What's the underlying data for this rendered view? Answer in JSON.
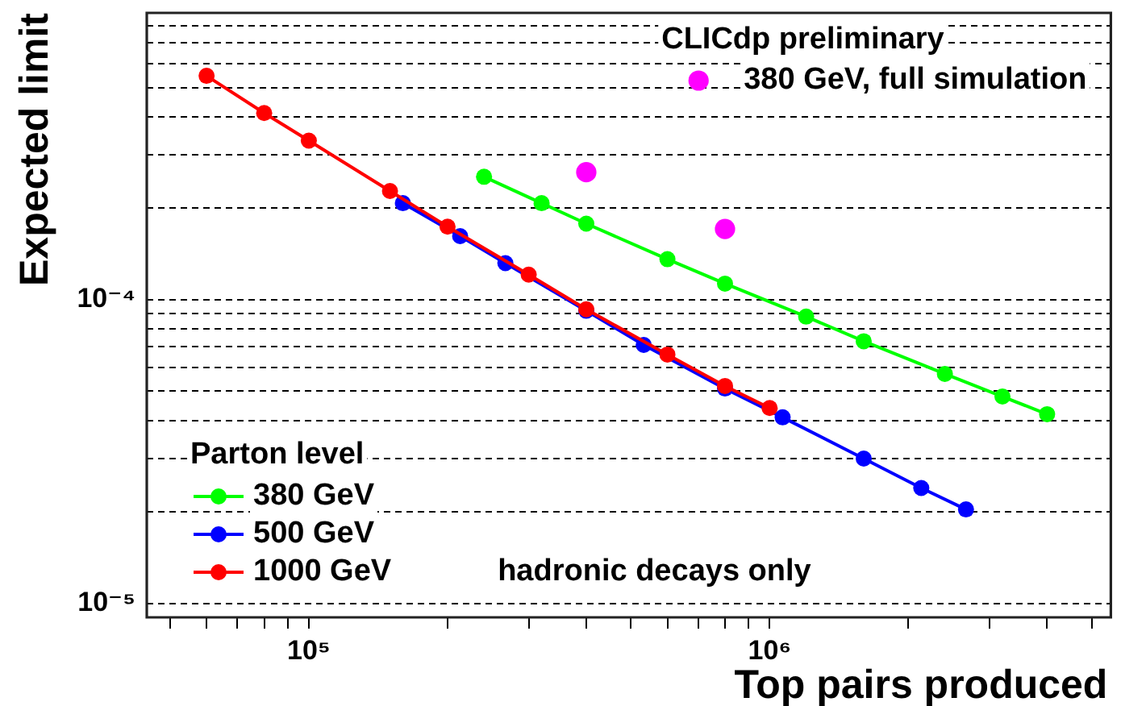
{
  "chart_data": {
    "type": "line",
    "xlabel": "Top pairs produced",
    "ylabel": "Expected limit",
    "legend_title": "Parton level",
    "annotations": [
      "CLICdp preliminary",
      "hadronic decays only"
    ],
    "log": "xy",
    "grid": "y",
    "legend": "bottom left",
    "marker": "circle",
    "line_style": "solid",
    "xlim": [
      44500,
      5500000
    ],
    "ylim": [
      9e-06,
      0.00088
    ],
    "xticks": [
      {
        "value": 50000,
        "label": null
      },
      {
        "value": 60000,
        "label": null
      },
      {
        "value": 70000,
        "label": null
      },
      {
        "value": 80000,
        "label": null
      },
      {
        "value": 90000,
        "label": null
      },
      {
        "value": 100000,
        "label": "10⁵"
      },
      {
        "value": 200000,
        "label": null
      },
      {
        "value": 300000,
        "label": null
      },
      {
        "value": 400000,
        "label": null
      },
      {
        "value": 500000,
        "label": null
      },
      {
        "value": 600000,
        "label": null
      },
      {
        "value": 700000,
        "label": null
      },
      {
        "value": 800000,
        "label": null
      },
      {
        "value": 900000,
        "label": null
      },
      {
        "value": 1000000,
        "label": "10⁶"
      },
      {
        "value": 2000000,
        "label": null
      },
      {
        "value": 3000000,
        "label": null
      },
      {
        "value": 4000000,
        "label": null
      },
      {
        "value": 5000000,
        "label": null
      }
    ],
    "yticks": [
      {
        "value": 1e-05,
        "label": "10⁻⁵"
      },
      {
        "value": 2e-05,
        "label": null
      },
      {
        "value": 3e-05,
        "label": null
      },
      {
        "value": 4e-05,
        "label": null
      },
      {
        "value": 5e-05,
        "label": null
      },
      {
        "value": 6e-05,
        "label": null
      },
      {
        "value": 7e-05,
        "label": null
      },
      {
        "value": 8e-05,
        "label": null
      },
      {
        "value": 9e-05,
        "label": null
      },
      {
        "value": 0.0001,
        "label": "10⁻⁴"
      },
      {
        "value": 0.0002,
        "label": null
      },
      {
        "value": 0.0003,
        "label": null
      },
      {
        "value": 0.0004,
        "label": null
      },
      {
        "value": 0.0005,
        "label": null
      },
      {
        "value": 0.0006,
        "label": null
      },
      {
        "value": 0.0007,
        "label": null
      },
      {
        "value": 0.0008,
        "label": null
      }
    ],
    "series": [
      {
        "name": "380 GeV",
        "color": "#00ff00",
        "x": [
          240000,
          320000,
          400000,
          600000,
          800000,
          1200000,
          1600000,
          2400000,
          3200000,
          4000000
        ],
        "values": [
          0.000254,
          0.000208,
          0.000178,
          0.000136,
          0.000113,
          8.8e-05,
          7.3e-05,
          5.7e-05,
          4.8e-05,
          4.2e-05
        ]
      },
      {
        "name": "500 GeV",
        "color": "#0000ff",
        "x": [
          160000,
          213000,
          267000,
          400000,
          533000,
          800000,
          1067000,
          1600000,
          2133000,
          2667000
        ],
        "values": [
          0.000208,
          0.000162,
          0.000132,
          9.2e-05,
          7.1e-05,
          5.1e-05,
          4.1e-05,
          3e-05,
          2.4e-05,
          2.04e-05
        ]
      },
      {
        "name": "1000 GeV",
        "color": "#ff0000",
        "x": [
          60000,
          80000,
          100000,
          150000,
          200000,
          300000,
          400000,
          600000,
          800000,
          1000000
        ],
        "values": [
          0.000546,
          0.000412,
          0.000334,
          0.000228,
          0.000174,
          0.000121,
          9.3e-05,
          6.6e-05,
          5.2e-05,
          4.4e-05
        ]
      },
      {
        "name": "380 GeV, full simulation",
        "type": "scatter",
        "color": "#ff00ff",
        "x": [
          400000,
          800000
        ],
        "values": [
          0.000263,
          0.000171
        ]
      }
    ]
  }
}
